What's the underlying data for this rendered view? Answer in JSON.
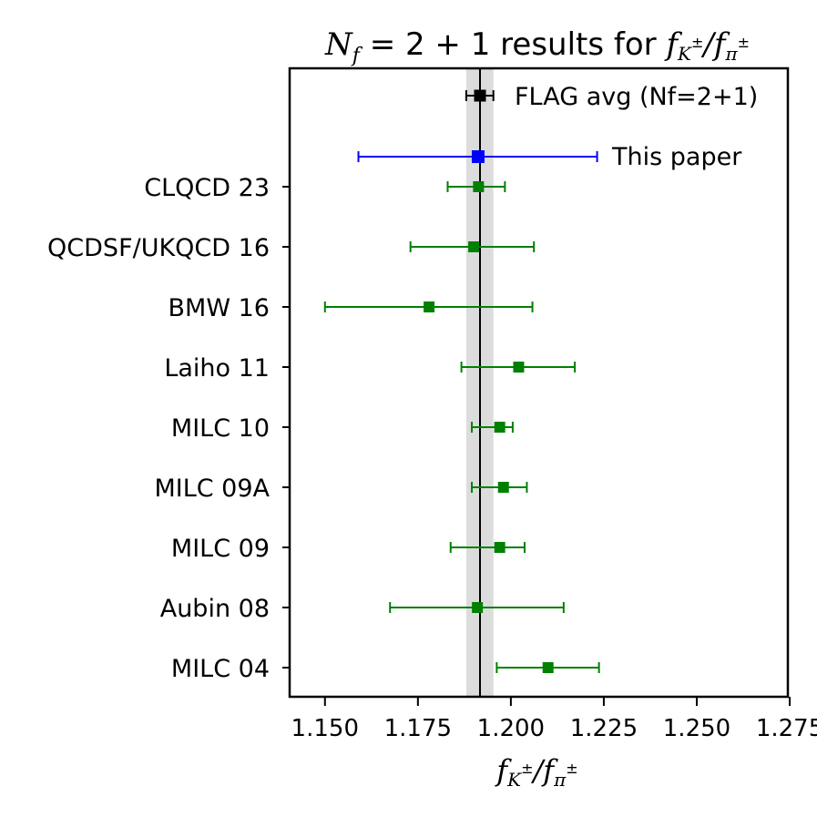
{
  "chart_data": {
    "type": "scatter",
    "variant": "forest-plot",
    "title_parts": {
      "var": "N",
      "var_sub": "f",
      "text": " = 2 + 1 results for ",
      "num": "f",
      "num_sub": "K",
      "num_sup": "±",
      "slash": "/",
      "den": "f",
      "den_sub": "π",
      "den_sup": "±"
    },
    "xlabel_parts": {
      "num": "f",
      "num_sub": "K",
      "num_sup": "±",
      "slash": "/",
      "den": "f",
      "den_sub": "π",
      "den_sup": "±"
    },
    "xlim": [
      1.1405,
      1.2745
    ],
    "xticks": [
      1.15,
      1.175,
      1.2,
      1.225,
      1.25,
      1.275
    ],
    "xtick_labels": [
      "1.150",
      "1.175",
      "1.200",
      "1.225",
      "1.250",
      "1.275"
    ],
    "reference": {
      "label": "FLAG avg (Nf=2+1)",
      "value": 1.1917,
      "band": [
        1.188,
        1.1953
      ],
      "err_low": 1.188,
      "err_high": 1.1953,
      "color": "#000000"
    },
    "this_paper": {
      "label": "This paper",
      "value": 1.1912,
      "err_low": 1.159,
      "err_high": 1.2232,
      "color": "#0000ff"
    },
    "points": [
      {
        "label": "CLQCD 23",
        "value": 1.1913,
        "err_low": 1.183,
        "err_high": 1.1984
      },
      {
        "label": "QCDSF/UKQCD 16",
        "value": 1.19,
        "err_low": 1.173,
        "err_high": 1.2062
      },
      {
        "label": "BMW 16",
        "value": 1.178,
        "err_low": 1.15,
        "err_high": 1.2058
      },
      {
        "label": "Laiho 11",
        "value": 1.2021,
        "err_low": 1.1867,
        "err_high": 1.2172
      },
      {
        "label": "MILC 10",
        "value": 1.197,
        "err_low": 1.1895,
        "err_high": 1.2005
      },
      {
        "label": "MILC 09A",
        "value": 1.198,
        "err_low": 1.1895,
        "err_high": 1.2043
      },
      {
        "label": "MILC 09",
        "value": 1.197,
        "err_low": 1.1838,
        "err_high": 1.2037
      },
      {
        "label": "Aubin 08",
        "value": 1.191,
        "err_low": 1.1675,
        "err_high": 1.2142
      },
      {
        "label": "MILC 04",
        "value": 1.21,
        "err_low": 1.1962,
        "err_high": 1.2237
      }
    ],
    "points_color": "#008000",
    "band_color": "#dcdcdc",
    "grid": false
  }
}
